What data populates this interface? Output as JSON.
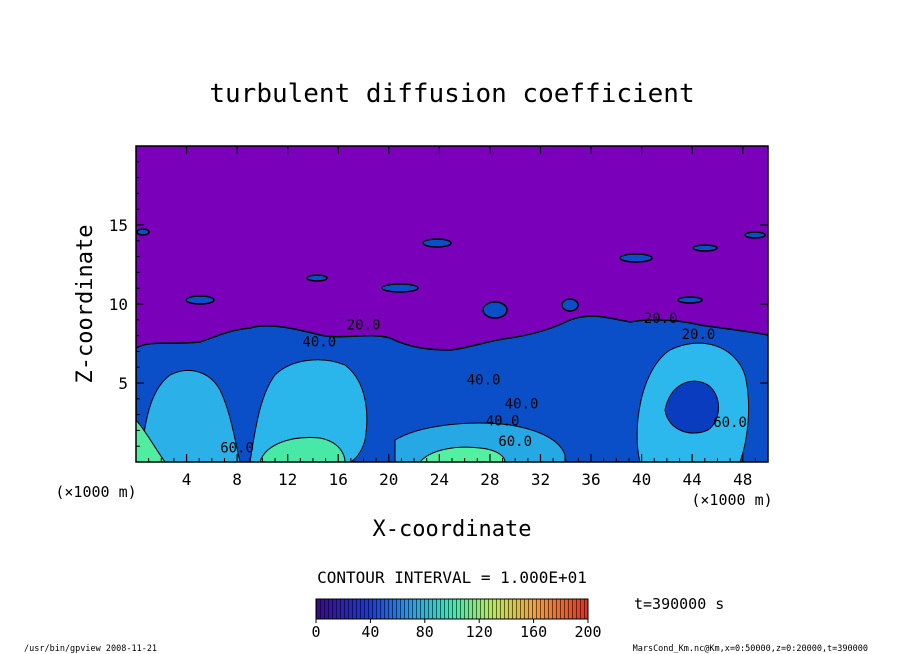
{
  "chart_data": {
    "type": "heatmap",
    "title": "turbulent diffusion coefficient",
    "xlabel": "X-coordinate",
    "ylabel": "Z-coordinate",
    "x_unit": "(×1000 m)",
    "y_unit": "(×1000 m)",
    "xlim": [
      0,
      50
    ],
    "ylim": [
      0,
      20
    ],
    "x_ticks": [
      4,
      8,
      12,
      16,
      20,
      24,
      28,
      32,
      36,
      40,
      44,
      48
    ],
    "y_ticks": [
      5,
      10,
      15
    ],
    "contour_interval_text": "CONTOUR INTERVAL = 1.000E+01",
    "time_text": "t=390000 s",
    "colorbar": {
      "range": [
        0,
        200
      ],
      "ticks": [
        0,
        40,
        80,
        120,
        160,
        200
      ]
    },
    "contour_labels": [
      {
        "text": "20.0",
        "x": 18,
        "y": 8.4
      },
      {
        "text": "20.0",
        "x": 41.5,
        "y": 8.8
      },
      {
        "text": "40.0",
        "x": 14.5,
        "y": 7.3
      },
      {
        "text": "40.0",
        "x": 27.5,
        "y": 4.9
      },
      {
        "text": "40.0",
        "x": 30.5,
        "y": 3.4
      },
      {
        "text": "20.0",
        "x": 44.5,
        "y": 7.8
      },
      {
        "text": "60.0",
        "x": 8.0,
        "y": 0.6
      },
      {
        "text": "60.0",
        "x": 30.0,
        "y": 1.0
      },
      {
        "text": "40.0",
        "x": 29.0,
        "y": 2.3
      },
      {
        "text": "60.0",
        "x": 47.0,
        "y": 2.2
      }
    ]
  },
  "footer": {
    "left": "/usr/bin/gpview   2008-11-21",
    "right": "MarsCond_Km.nc@Km,x=0:50000,z=0:20000,t=390000"
  },
  "colors": {
    "background_purple": "#7a00ba",
    "low_blue": "#0a55d8",
    "mid_cyan": "#2bb8ea",
    "high_green": "#4ff0a0"
  }
}
